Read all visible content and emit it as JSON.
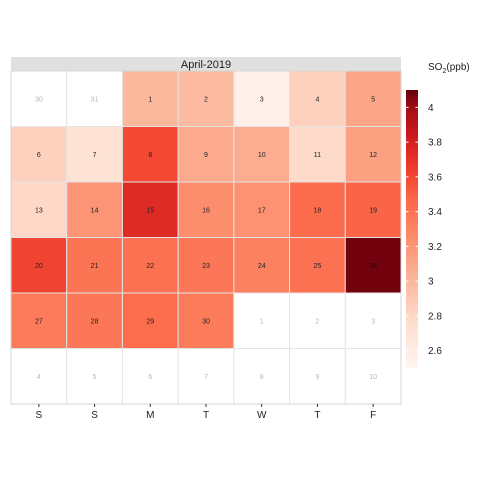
{
  "chart_data": {
    "type": "heatmap",
    "title": "April-2019",
    "legend_title": "SO₂(ppb)",
    "legend_title_base": "SO",
    "legend_title_sub": "2",
    "legend_title_unit": "(ppb)",
    "legend_ticks": [
      "4",
      "3.8",
      "3.6",
      "3.4",
      "3.2",
      "3",
      "2.8",
      "2.6"
    ],
    "legend_tick_values": [
      4.0,
      3.8,
      3.6,
      3.4,
      3.2,
      3.0,
      2.8,
      2.6
    ],
    "color_range": [
      2.5,
      4.1
    ],
    "colors": {
      "low": "#fff5f0",
      "high": "#67000d",
      "empty": "#ffffff",
      "grid": "#e4e4e4",
      "strip": "#e0e0e0",
      "muted_text": "#b8b8b8",
      "text": "#222222"
    },
    "weekdays": [
      "S",
      "S",
      "M",
      "T",
      "W",
      "T",
      "F"
    ],
    "weeks": [
      [
        {
          "day": "30",
          "value": null
        },
        {
          "day": "31",
          "value": null
        },
        {
          "day": "1",
          "value": 3.0
        },
        {
          "day": "2",
          "value": 2.98
        },
        {
          "day": "3",
          "value": 2.56
        },
        {
          "day": "4",
          "value": 2.84
        },
        {
          "day": "5",
          "value": 3.1
        }
      ],
      [
        {
          "day": "6",
          "value": 2.84
        },
        {
          "day": "7",
          "value": 2.72
        },
        {
          "day": "8",
          "value": 3.6
        },
        {
          "day": "9",
          "value": 3.08
        },
        {
          "day": "10",
          "value": 3.06
        },
        {
          "day": "11",
          "value": 2.78
        },
        {
          "day": "12",
          "value": 3.14
        }
      ],
      [
        {
          "day": "13",
          "value": 2.8
        },
        {
          "day": "14",
          "value": 3.2
        },
        {
          "day": "15",
          "value": 3.74
        },
        {
          "day": "16",
          "value": 3.25
        },
        {
          "day": "17",
          "value": 3.22
        },
        {
          "day": "18",
          "value": 3.45
        },
        {
          "day": "19",
          "value": 3.48
        }
      ],
      [
        {
          "day": "20",
          "value": 3.62
        },
        {
          "day": "21",
          "value": 3.4
        },
        {
          "day": "22",
          "value": 3.42
        },
        {
          "day": "23",
          "value": 3.38
        },
        {
          "day": "24",
          "value": 3.32
        },
        {
          "day": "25",
          "value": 3.42
        },
        {
          "day": "26",
          "value": 4.08
        }
      ],
      [
        {
          "day": "27",
          "value": 3.36
        },
        {
          "day": "28",
          "value": 3.38
        },
        {
          "day": "29",
          "value": 3.44
        },
        {
          "day": "30",
          "value": 3.36
        },
        {
          "day": "1",
          "value": null
        },
        {
          "day": "2",
          "value": null
        },
        {
          "day": "3",
          "value": null
        }
      ],
      [
        {
          "day": "4",
          "value": null
        },
        {
          "day": "5",
          "value": null
        },
        {
          "day": "6",
          "value": null
        },
        {
          "day": "7",
          "value": null
        },
        {
          "day": "8",
          "value": null
        },
        {
          "day": "9",
          "value": null
        },
        {
          "day": "10",
          "value": null
        }
      ]
    ]
  }
}
